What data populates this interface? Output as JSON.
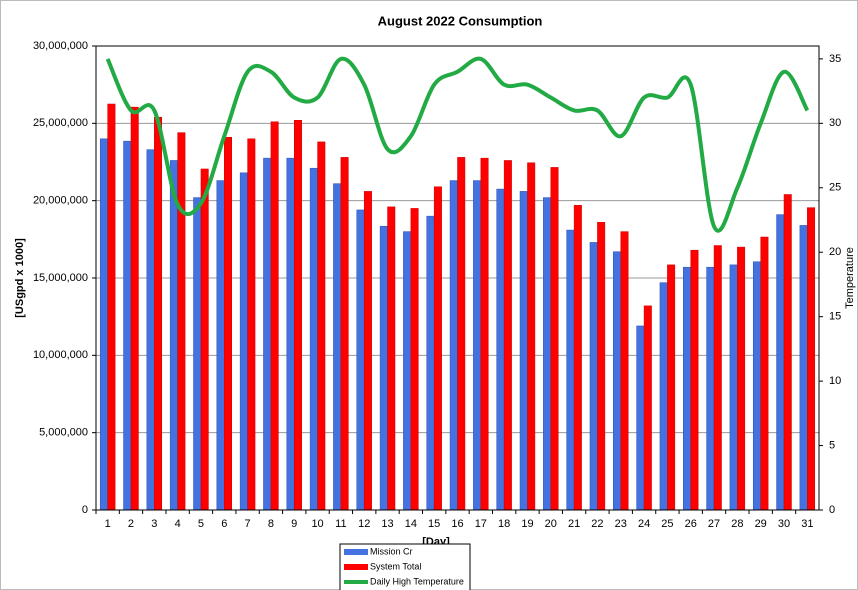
{
  "chart_data": {
    "type": "bar",
    "title": "August 2022 Consumption",
    "x_label": "[Day]",
    "y_label": "[USgpd x 1000]",
    "y2_label": "Temperature",
    "categories": [
      "1",
      "2",
      "3",
      "4",
      "5",
      "6",
      "7",
      "8",
      "9",
      "10",
      "11",
      "12",
      "13",
      "14",
      "15",
      "16",
      "17",
      "18",
      "19",
      "20",
      "21",
      "22",
      "23",
      "24",
      "25",
      "26",
      "27",
      "28",
      "29",
      "30",
      "31"
    ],
    "series": [
      {
        "name": "Mission Cr",
        "color": "#4472e0",
        "values": [
          24000000,
          23850000,
          23300000,
          22600000,
          20200000,
          21300000,
          21800000,
          22750000,
          22750000,
          22100000,
          21100000,
          19400000,
          18350000,
          18000000,
          19000000,
          21300000,
          21300000,
          20750000,
          20600000,
          20200000,
          18100000,
          17300000,
          16700000,
          11900000,
          14700000,
          15700000,
          15700000,
          15850000,
          16050000,
          19100000,
          18400000
        ]
      },
      {
        "name": "System Total",
        "color": "#ff0000",
        "values": [
          26250000,
          26050000,
          25400000,
          24400000,
          22050000,
          24100000,
          24000000,
          25100000,
          25200000,
          23800000,
          22800000,
          20600000,
          19600000,
          19500000,
          20900000,
          22800000,
          22750000,
          22600000,
          22450000,
          22150000,
          19700000,
          18600000,
          18000000,
          13200000,
          15850000,
          16800000,
          17100000,
          17000000,
          17650000,
          20400000,
          19550000
        ]
      },
      {
        "name": "Daily High Temperature",
        "color": "#22aa44",
        "axis": "y2",
        "type": "line",
        "values": [
          35,
          31,
          31,
          23.7,
          23.8,
          29,
          34,
          34,
          32,
          32,
          35,
          33,
          28,
          29,
          33,
          34,
          35,
          33,
          33,
          32,
          31,
          31,
          29,
          32,
          32,
          33,
          22,
          25,
          30,
          34,
          31
        ]
      }
    ],
    "ylim": [
      0,
      30000000
    ],
    "yticks": [
      0,
      {
        "value": 5000000,
        "label": "5,000,000"
      },
      {
        "value": 10000000,
        "label": "10,000,000"
      },
      {
        "value": 15000000,
        "label": "15,000,000"
      },
      {
        "value": 20000000,
        "label": "20,000,000"
      },
      {
        "value": 25000000,
        "label": "25,000,000"
      },
      {
        "value": 30000000,
        "label": "30,000,000"
      }
    ],
    "y2lim": [
      0,
      36
    ],
    "y2ticks": [
      0,
      5,
      10,
      15,
      20,
      25,
      30,
      35
    ],
    "grid": true
  }
}
